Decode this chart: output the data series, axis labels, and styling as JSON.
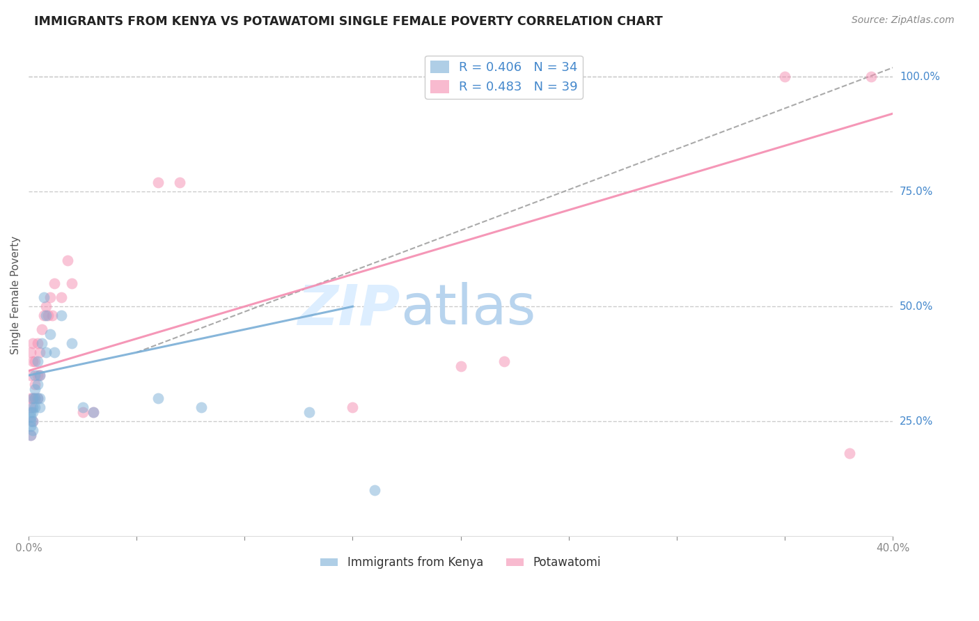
{
  "title": "IMMIGRANTS FROM KENYA VS POTAWATOMI SINGLE FEMALE POVERTY CORRELATION CHART",
  "source": "Source: ZipAtlas.com",
  "ylabel": "Single Female Poverty",
  "xlim": [
    0.0,
    0.4
  ],
  "ylim": [
    0.0,
    1.05
  ],
  "xticks": [
    0.0,
    0.05,
    0.1,
    0.15,
    0.2,
    0.25,
    0.3,
    0.35,
    0.4
  ],
  "xticklabels": [
    "0.0%",
    "",
    "",
    "",
    "",
    "",
    "",
    "",
    "40.0%"
  ],
  "yticks_right": [
    0.25,
    0.5,
    0.75,
    1.0
  ],
  "ytick_labels_right": [
    "25.0%",
    "50.0%",
    "75.0%",
    "100.0%"
  ],
  "grid_color": "#cccccc",
  "background_color": "#ffffff",
  "kenya_color": "#7aaed6",
  "potawatomi_color": "#f48cb0",
  "kenya_R": 0.406,
  "kenya_N": 34,
  "potawatomi_R": 0.483,
  "potawatomi_N": 39,
  "legend_label_1": "Immigrants from Kenya",
  "legend_label_2": "Potawatomi",
  "kenya_line_x": [
    0.0,
    0.15
  ],
  "kenya_line_y": [
    0.35,
    0.5
  ],
  "potawatomi_line_x": [
    0.0,
    0.4
  ],
  "potawatomi_line_y": [
    0.36,
    0.92
  ],
  "ref_line_x": [
    0.05,
    0.4
  ],
  "ref_line_y": [
    0.4,
    1.02
  ],
  "kenya_x": [
    0.001,
    0.001,
    0.001,
    0.001,
    0.001,
    0.002,
    0.002,
    0.002,
    0.002,
    0.002,
    0.003,
    0.003,
    0.003,
    0.003,
    0.004,
    0.004,
    0.004,
    0.005,
    0.005,
    0.005,
    0.006,
    0.007,
    0.008,
    0.008,
    0.01,
    0.012,
    0.015,
    0.02,
    0.025,
    0.03,
    0.06,
    0.08,
    0.13,
    0.16
  ],
  "kenya_y": [
    0.22,
    0.24,
    0.25,
    0.26,
    0.27,
    0.23,
    0.25,
    0.27,
    0.28,
    0.3,
    0.28,
    0.3,
    0.32,
    0.35,
    0.3,
    0.33,
    0.38,
    0.28,
    0.3,
    0.35,
    0.42,
    0.52,
    0.4,
    0.48,
    0.44,
    0.4,
    0.48,
    0.42,
    0.28,
    0.27,
    0.3,
    0.28,
    0.27,
    0.1
  ],
  "potawatomi_x": [
    0.001,
    0.001,
    0.001,
    0.001,
    0.001,
    0.002,
    0.002,
    0.002,
    0.002,
    0.003,
    0.003,
    0.003,
    0.004,
    0.004,
    0.004,
    0.005,
    0.005,
    0.006,
    0.007,
    0.008,
    0.009,
    0.01,
    0.011,
    0.012,
    0.015,
    0.018,
    0.02,
    0.025,
    0.03,
    0.06,
    0.07,
    0.15,
    0.2,
    0.22,
    0.24,
    0.25,
    0.35,
    0.38,
    0.39
  ],
  "potawatomi_y": [
    0.22,
    0.28,
    0.3,
    0.35,
    0.4,
    0.25,
    0.3,
    0.38,
    0.42,
    0.3,
    0.33,
    0.38,
    0.3,
    0.35,
    0.42,
    0.35,
    0.4,
    0.45,
    0.48,
    0.5,
    0.48,
    0.52,
    0.48,
    0.55,
    0.52,
    0.6,
    0.55,
    0.27,
    0.27,
    0.77,
    0.77,
    0.28,
    0.37,
    0.38,
    1.0,
    1.0,
    1.0,
    0.18,
    1.0
  ]
}
